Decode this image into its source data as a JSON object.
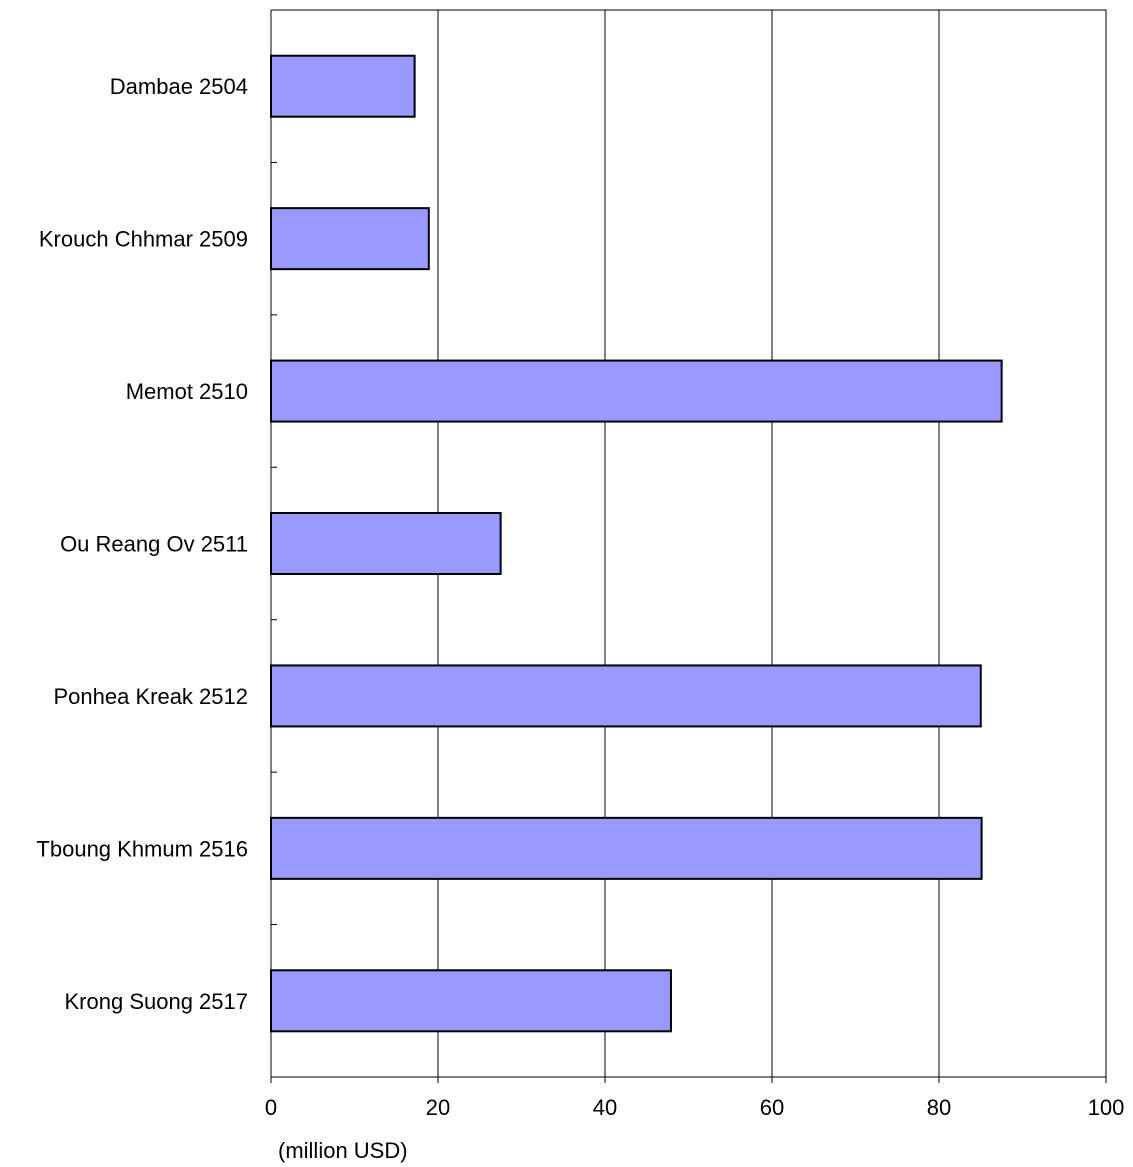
{
  "chart_data": {
    "type": "bar",
    "orientation": "horizontal",
    "title": "",
    "xlabel": "(million USD)",
    "ylabel": "",
    "categories": [
      "Dambae 2504",
      "Krouch Chhmar 2509",
      "Memot 2510",
      "Ou Reang Ov 2511",
      "Ponhea Kreak 2512",
      "Tboung Khmum 2516",
      "Krong Suong 2517"
    ],
    "values": [
      17.2,
      18.9,
      87.5,
      27.5,
      85.0,
      85.1,
      47.9
    ],
    "xlim": [
      0,
      100
    ],
    "xticks": [
      "0",
      "20",
      "40",
      "60",
      "80",
      "100"
    ],
    "grid": "vertical",
    "legend": "none",
    "colors": {
      "bar_fill": "#9999ff",
      "bar_stroke": "#000000",
      "grid": "#000000"
    }
  }
}
